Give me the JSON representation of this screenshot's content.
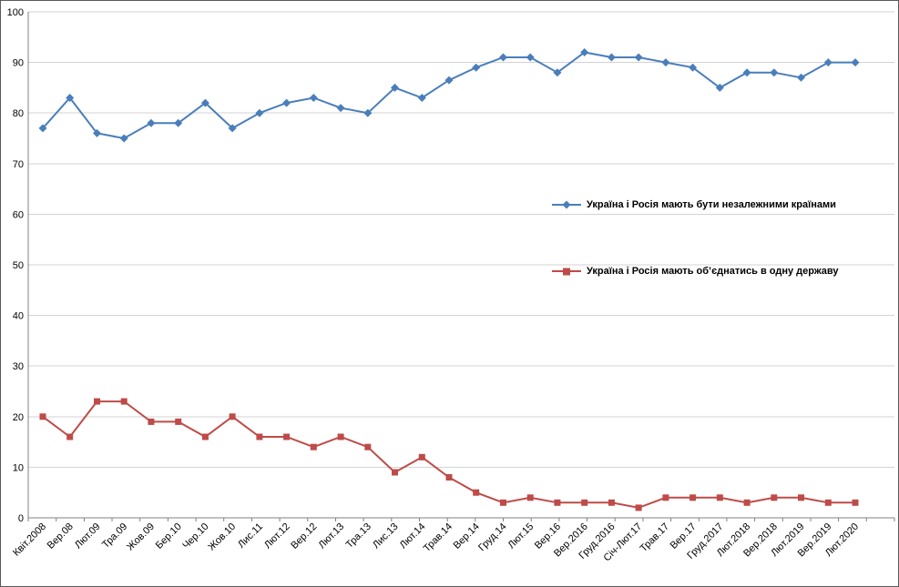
{
  "chart_data": {
    "type": "line",
    "title": "",
    "xlabel": "",
    "ylabel": "",
    "ylim": [
      0,
      100
    ],
    "ytick_step": 10,
    "grid": "horizontal",
    "legend_position": "inside-right",
    "grid_color": "#d3d3d3",
    "axis_color": "#808080",
    "categories": [
      "Квіт.2008",
      "Вер.08",
      "Лют.09",
      "Тра.09",
      "Жов.09",
      "Бер.10",
      "Чер.10",
      "Жов.10",
      "Лис.11",
      "Лют.12",
      "Вер.12",
      "Лют.13",
      "Тра.13",
      "Лис.13",
      "Лют.14",
      "Трав.14",
      "Вер.14",
      "Груд.14",
      "Лют.15",
      "Вер.16",
      "Вер.2016",
      "Груд.2016",
      "Січ-Лют.17",
      "Трав.17",
      "Вер.17",
      "Груд.2017",
      "Лют.2018",
      "Вер.2018",
      "Лют.2019",
      "Вер.2019",
      "Лют.2020"
    ],
    "series": [
      {
        "name": "Україна і Росія мають бути незалежними країнами",
        "color": "#4a7ebb",
        "marker": "diamond",
        "values": [
          77,
          83,
          76,
          75,
          78,
          78,
          82,
          77,
          80,
          82,
          83,
          81,
          80,
          85,
          83,
          86.5,
          89,
          91,
          91,
          88,
          92,
          91,
          91,
          90,
          89,
          85,
          88,
          88,
          87,
          90,
          90
        ]
      },
      {
        "name": "Україна і Росія мають об’єднатись в одну державу",
        "color": "#be4b48",
        "marker": "square",
        "values": [
          20,
          16,
          23,
          23,
          19,
          19,
          16,
          20,
          16,
          16,
          14,
          16,
          14,
          9,
          12,
          8,
          5,
          3,
          4,
          3,
          3,
          3,
          2,
          4,
          4,
          4,
          3,
          4,
          4,
          3,
          3
        ]
      }
    ]
  }
}
